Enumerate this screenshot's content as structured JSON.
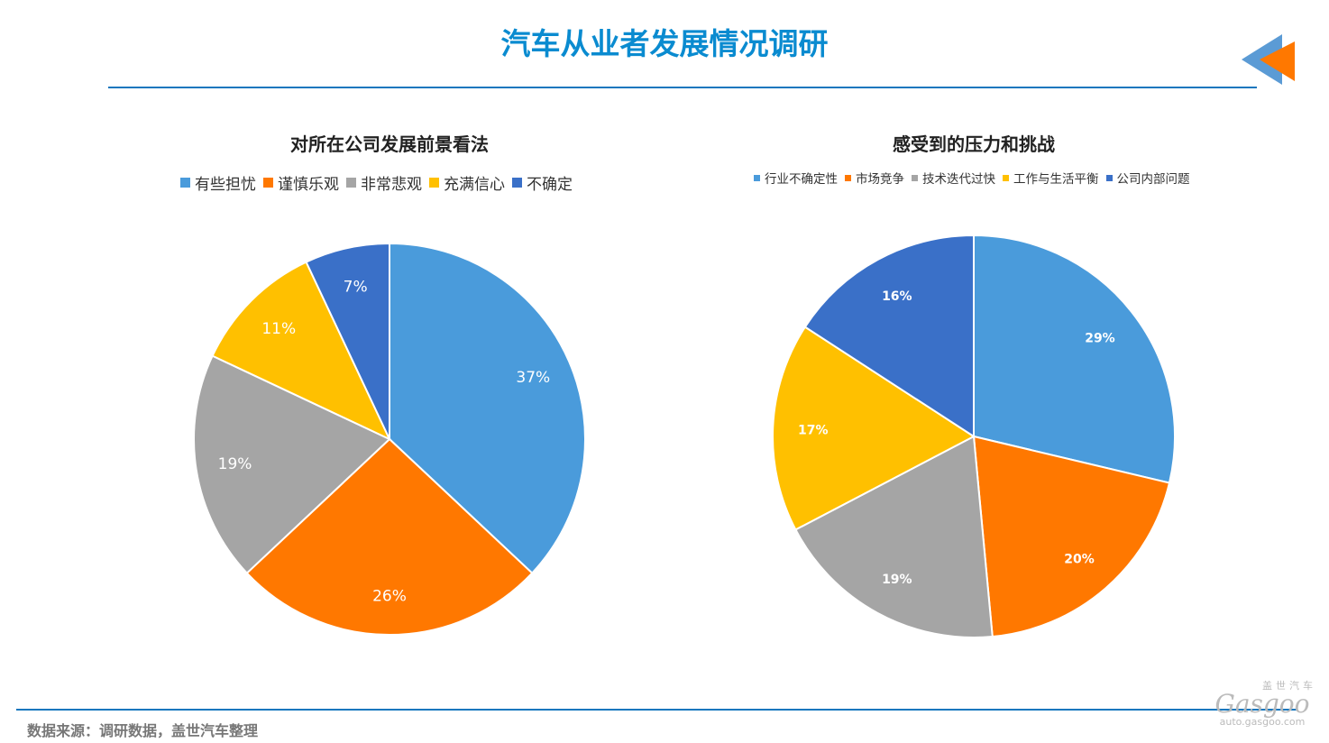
{
  "header": {
    "title": "汽车从业者发展情况调研"
  },
  "colors": {
    "blue": "#4A9BDB",
    "orange": "#FF7800",
    "gray": "#A5A5A5",
    "yellow": "#FFC000",
    "darkblue": "#3A70C8",
    "accent": "#0A8BD0"
  },
  "chart_data": [
    {
      "type": "pie",
      "title": "对所在公司发展前景看法",
      "legend_position": "top",
      "categories": [
        "有些担忧",
        "谨慎乐观",
        "非常悲观",
        "充满信心",
        "不确定"
      ],
      "values": [
        37,
        26,
        19,
        11,
        7
      ],
      "labels": [
        "37%",
        "26%",
        "19%",
        "11%",
        "7%"
      ],
      "colors": [
        "#4A9BDB",
        "#FF7800",
        "#A5A5A5",
        "#FFC000",
        "#3A70C8"
      ]
    },
    {
      "type": "pie",
      "title": "感受到的压力和挑战",
      "legend_position": "top",
      "categories": [
        "行业不确定性",
        "市场竞争",
        "技术迭代过快",
        "工作与生活平衡",
        "公司内部问题"
      ],
      "values": [
        29,
        20,
        19,
        17,
        16
      ],
      "labels": [
        "29%",
        "20%",
        "19%",
        "17%",
        "16%"
      ],
      "colors": [
        "#4A9BDB",
        "#FF7800",
        "#A5A5A5",
        "#FFC000",
        "#3A70C8"
      ]
    }
  ],
  "footer": {
    "source": "数据来源：调研数据，盖世汽车整理",
    "logo_cn": "盖世汽车",
    "logo_en": "Gasgoo",
    "logo_url": "auto.gasgoo.com"
  }
}
